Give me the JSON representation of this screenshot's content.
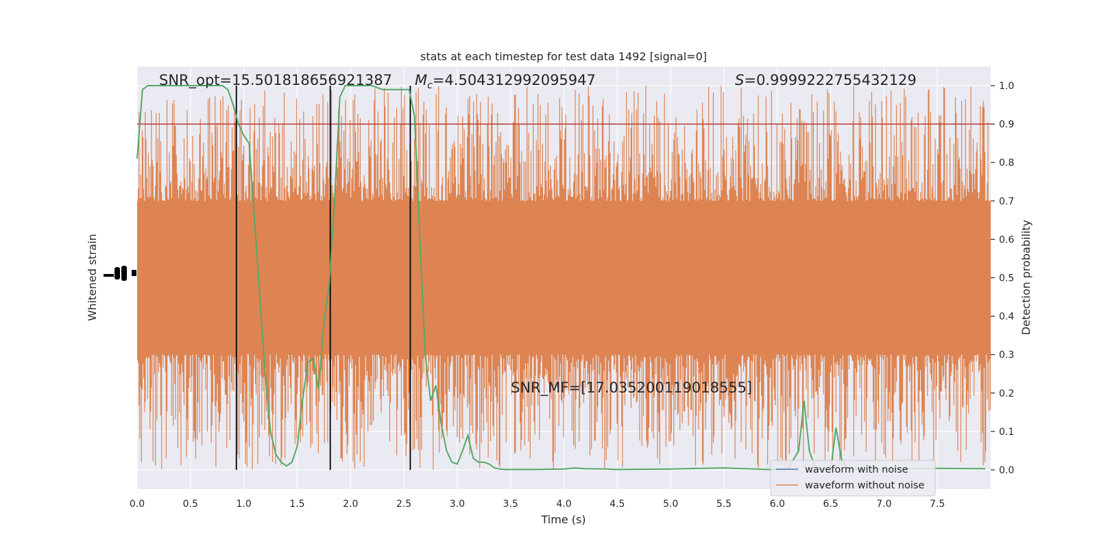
{
  "chart_data": {
    "type": "line",
    "title": "stats at each timestep for test data 1492 [signal=0]",
    "xlabel": "Time (s)",
    "ylabel_left": "Whitened strain",
    "ylabel_right": "Detection probability",
    "xlim": [
      0,
      8
    ],
    "ylim_right": [
      -0.05,
      1.05
    ],
    "grid": true,
    "background": "#eaeaf2",
    "x_ticks": [
      "0.0",
      "0.5",
      "1.0",
      "1.5",
      "2.0",
      "2.5",
      "3.0",
      "3.5",
      "4.0",
      "4.5",
      "5.0",
      "5.5",
      "6.0",
      "6.5",
      "7.0",
      "7.5"
    ],
    "y_ticks_right": [
      "0.0",
      "0.1",
      "0.2",
      "0.3",
      "0.4",
      "0.5",
      "0.6",
      "0.7",
      "0.8",
      "0.9",
      "1.0"
    ],
    "threshold": {
      "value": 0.9,
      "color": "#b83a34"
    },
    "vertical_lines": [
      0.93,
      1.81,
      2.56
    ],
    "annotations": {
      "snr_opt": "SNR_opt=15.501818656921387",
      "mc_symbol": "M",
      "mc_sub": "c",
      "mc_value": "=4.504312992095947",
      "s_symbol": "S",
      "s_value": "=0.9999222755432129",
      "snr_mf": "SNR_MF=[17.035200119018555]"
    },
    "series": [
      {
        "name": "waveform with noise",
        "color": "#4c72b0"
      },
      {
        "name": "waveform without noise",
        "color": "#dd8452",
        "band_core": [
          0.3,
          0.7
        ],
        "spike_range": [
          0.0,
          1.0
        ]
      },
      {
        "color": "#55a868",
        "x": [
          0,
          0.05,
          0.1,
          0.2,
          0.3,
          0.5,
          0.7,
          0.8,
          0.85,
          0.9,
          0.95,
          1.0,
          1.05,
          1.1,
          1.15,
          1.2,
          1.25,
          1.3,
          1.35,
          1.4,
          1.45,
          1.5,
          1.55,
          1.6,
          1.65,
          1.7,
          1.75,
          1.8,
          1.85,
          1.9,
          1.95,
          2.0,
          2.1,
          2.2,
          2.3,
          2.4,
          2.5,
          2.55,
          2.6,
          2.65,
          2.7,
          2.75,
          2.8,
          2.85,
          2.9,
          2.95,
          3.0,
          3.05,
          3.1,
          3.15,
          3.2,
          3.25,
          3.3,
          3.35,
          3.4,
          3.45,
          3.5,
          3.7,
          4.0,
          4.1,
          4.2,
          4.4,
          4.5,
          5.0,
          5.3,
          5.5,
          5.6,
          5.7,
          5.8,
          5.9,
          6.0,
          6.1,
          6.2,
          6.25,
          6.3,
          6.35,
          6.4,
          6.5,
          6.55,
          6.6,
          6.65,
          6.7,
          7.0,
          7.5,
          7.95
        ],
        "y": [
          0.81,
          0.99,
          1.0,
          1.0,
          1.0,
          1.0,
          1.0,
          1.0,
          0.99,
          0.95,
          0.9,
          0.87,
          0.85,
          0.65,
          0.45,
          0.25,
          0.1,
          0.04,
          0.02,
          0.01,
          0.02,
          0.06,
          0.18,
          0.28,
          0.29,
          0.21,
          0.38,
          0.48,
          0.7,
          0.97,
          1.0,
          1.0,
          1.0,
          1.0,
          0.99,
          0.99,
          0.99,
          0.99,
          0.92,
          0.6,
          0.3,
          0.18,
          0.22,
          0.12,
          0.05,
          0.02,
          0.015,
          0.05,
          0.09,
          0.03,
          0.02,
          0.02,
          0.015,
          0.005,
          0.002,
          0.001,
          0.001,
          0.001,
          0.002,
          0.005,
          0.003,
          0.002,
          0.001,
          0.002,
          0.004,
          0.005,
          0.004,
          0.003,
          0.002,
          0.001,
          0.001,
          0.002,
          0.05,
          0.18,
          0.05,
          0.01,
          0.002,
          0.001,
          0.11,
          0.03,
          0.005,
          0.002,
          0.003,
          0.004,
          0.003
        ]
      }
    ]
  }
}
